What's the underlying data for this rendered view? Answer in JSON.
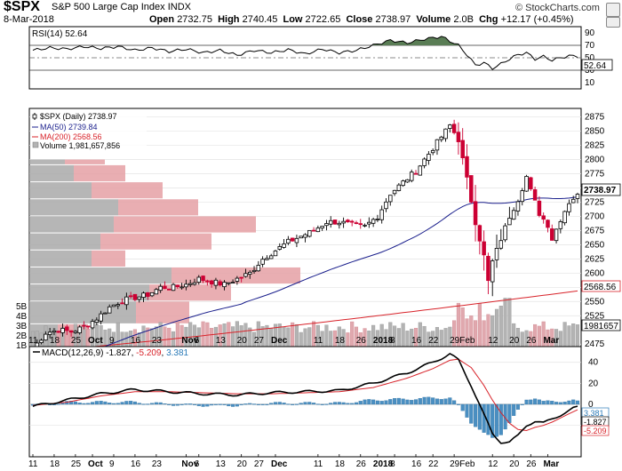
{
  "header": {
    "symbol": "$SPX",
    "name": "S&P 500 Large Cap Index",
    "exchange": "INDX",
    "date": "8-Mar-2018",
    "open_label": "Open",
    "open": "2732.75",
    "high_label": "High",
    "high": "2740.45",
    "low_label": "Low",
    "low": "2722.65",
    "close_label": "Close",
    "close": "2738.97",
    "volume_label": "Volume",
    "volume": "2.0B",
    "chg_label": "Chg",
    "chg": "+12.17 (+0.45%)",
    "brand": "© StockCharts.com"
  },
  "colors": {
    "up": "#000000",
    "down": "#cc0033",
    "ma50": "#1a1f8c",
    "ma200": "#d8232a",
    "rsi_fill": "#5a7d55",
    "macd_hist": "#4a8fc2",
    "vol_up": "#b3b3b3",
    "vol_down": "#e0a8ae",
    "vbp_gray": "#a9a9a9",
    "vbp_red": "#e5a0a5"
  },
  "x_labels": [
    {
      "label": "11",
      "i": 0
    },
    {
      "label": "18",
      "i": 5
    },
    {
      "label": "25",
      "i": 10
    },
    {
      "label": "Oct",
      "i": 14
    },
    {
      "label": "9",
      "i": 19
    },
    {
      "label": "16",
      "i": 24
    },
    {
      "label": "23",
      "i": 29
    },
    {
      "label": "Nov",
      "i": 36
    },
    {
      "label": "6",
      "i": 39
    },
    {
      "label": "13",
      "i": 44
    },
    {
      "label": "20",
      "i": 49
    },
    {
      "label": "27",
      "i": 53
    },
    {
      "label": "Dec",
      "i": 57
    },
    {
      "label": "11",
      "i": 67
    },
    {
      "label": "18",
      "i": 72
    },
    {
      "label": "26",
      "i": 77
    },
    {
      "label": "2018",
      "i": 81
    },
    {
      "label": "8",
      "i": 85
    },
    {
      "label": "16",
      "i": 90
    },
    {
      "label": "22",
      "i": 94
    },
    {
      "label": "29Feb",
      "i": 99
    },
    {
      "label": "12",
      "i": 108
    },
    {
      "label": "20",
      "i": 113
    },
    {
      "label": "26",
      "i": 117
    },
    {
      "label": "Mar",
      "i": 121
    }
  ],
  "rsi": {
    "label": "RSI(14)",
    "value": "52.64",
    "ticks": [
      "90",
      "70",
      "50",
      "30",
      "10"
    ],
    "levels": [
      70,
      30
    ],
    "points": [
      [
        0,
        62
      ],
      [
        4,
        66
      ],
      [
        8,
        64
      ],
      [
        12,
        68
      ],
      [
        16,
        65
      ],
      [
        20,
        68
      ],
      [
        24,
        62
      ],
      [
        28,
        66
      ],
      [
        32,
        60
      ],
      [
        36,
        64
      ],
      [
        40,
        58
      ],
      [
        44,
        62
      ],
      [
        48,
        54
      ],
      [
        52,
        62
      ],
      [
        56,
        58
      ],
      [
        60,
        63
      ],
      [
        64,
        56
      ],
      [
        68,
        64
      ],
      [
        72,
        58
      ],
      [
        76,
        62
      ],
      [
        80,
        70
      ],
      [
        84,
        78
      ],
      [
        88,
        74
      ],
      [
        92,
        80
      ],
      [
        96,
        84
      ],
      [
        100,
        70
      ],
      [
        102,
        55
      ],
      [
        104,
        38
      ],
      [
        106,
        42
      ],
      [
        108,
        33
      ],
      [
        110,
        40
      ],
      [
        112,
        48
      ],
      [
        114,
        55
      ],
      [
        116,
        58
      ],
      [
        118,
        48
      ],
      [
        120,
        52
      ],
      [
        122,
        46
      ],
      [
        124,
        50
      ],
      [
        126,
        53
      ],
      [
        128,
        52.64
      ]
    ]
  },
  "price": {
    "label": "$SPX (Daily) 2738.97",
    "ma50_label": "MA(50) 2739.84",
    "ma200_label": "MA(200) 2568.56",
    "volume_label": "Volume 1,981,657,856",
    "ticks": [
      "2875",
      "2850",
      "2825",
      "2800",
      "2775",
      "2750",
      "2725",
      "2700",
      "2675",
      "2650",
      "2625",
      "2600",
      "2575",
      "2550",
      "2525",
      "2475"
    ],
    "last_price_tag": "2738.97",
    "ma200_tag": "2568.56",
    "volume_tag": "1981657",
    "volume_ticks": [
      "5B",
      "4B",
      "3B",
      "2B",
      "1B"
    ],
    "ylim": [
      2455,
      2890
    ],
    "close_anchors": [
      [
        0,
        2467
      ],
      [
        3,
        2495
      ],
      [
        6,
        2500
      ],
      [
        9,
        2497
      ],
      [
        12,
        2505
      ],
      [
        15,
        2520
      ],
      [
        18,
        2540
      ],
      [
        21,
        2552
      ],
      [
        24,
        2557
      ],
      [
        27,
        2562
      ],
      [
        30,
        2575
      ],
      [
        33,
        2575
      ],
      [
        36,
        2580
      ],
      [
        39,
        2590
      ],
      [
        42,
        2585
      ],
      [
        45,
        2580
      ],
      [
        48,
        2590
      ],
      [
        51,
        2600
      ],
      [
        54,
        2625
      ],
      [
        57,
        2640
      ],
      [
        60,
        2655
      ],
      [
        63,
        2665
      ],
      [
        66,
        2675
      ],
      [
        69,
        2690
      ],
      [
        72,
        2690
      ],
      [
        75,
        2685
      ],
      [
        78,
        2682
      ],
      [
        81,
        2700
      ],
      [
        84,
        2740
      ],
      [
        87,
        2760
      ],
      [
        90,
        2780
      ],
      [
        93,
        2810
      ],
      [
        96,
        2840
      ],
      [
        98,
        2860
      ],
      [
        100,
        2835
      ],
      [
        102,
        2765
      ],
      [
        104,
        2690
      ],
      [
        106,
        2630
      ],
      [
        107,
        2585
      ],
      [
        108,
        2620
      ],
      [
        110,
        2660
      ],
      [
        112,
        2700
      ],
      [
        114,
        2730
      ],
      [
        116,
        2770
      ],
      [
        117,
        2745
      ],
      [
        119,
        2705
      ],
      [
        121,
        2685
      ],
      [
        122,
        2660
      ],
      [
        124,
        2695
      ],
      [
        126,
        2725
      ],
      [
        128,
        2738.97
      ]
    ]
  },
  "vbp": [
    {
      "lo": 2455,
      "hi": 2510,
      "gray": 32,
      "red": 34
    },
    {
      "lo": 2510,
      "hi": 2550,
      "gray": 120,
      "red": 60
    },
    {
      "lo": 2550,
      "hi": 2580,
      "gray": 135,
      "red": 92
    },
    {
      "lo": 2580,
      "hi": 2610,
      "gray": 160,
      "red": 145
    },
    {
      "lo": 2610,
      "hi": 2640,
      "gray": 70,
      "red": 38
    },
    {
      "lo": 2640,
      "hi": 2670,
      "gray": 80,
      "red": 125
    },
    {
      "lo": 2670,
      "hi": 2700,
      "gray": 95,
      "red": 160
    },
    {
      "lo": 2700,
      "hi": 2730,
      "gray": 100,
      "red": 90
    },
    {
      "lo": 2730,
      "hi": 2760,
      "gray": 70,
      "red": 80
    },
    {
      "lo": 2760,
      "hi": 2790,
      "gray": 50,
      "red": 58
    },
    {
      "lo": 2790,
      "hi": 2800,
      "gray": 40,
      "red": 45
    }
  ],
  "macd": {
    "label": "MACD(12,26,9)",
    "macd": "-1.827",
    "signal": "-5.209",
    "hist": "3.381",
    "ticks": [
      "40",
      "20",
      "0",
      "-20"
    ],
    "tags": [
      "3.381",
      "-1.827",
      "-5.209"
    ],
    "ylim": [
      -50,
      55
    ],
    "macd_points": [
      [
        0,
        -2
      ],
      [
        8,
        4
      ],
      [
        16,
        10
      ],
      [
        24,
        14
      ],
      [
        32,
        12
      ],
      [
        40,
        10
      ],
      [
        48,
        9
      ],
      [
        56,
        11
      ],
      [
        64,
        12
      ],
      [
        72,
        13
      ],
      [
        80,
        20
      ],
      [
        88,
        30
      ],
      [
        94,
        40
      ],
      [
        98,
        48
      ],
      [
        100,
        42
      ],
      [
        103,
        18
      ],
      [
        106,
        -10
      ],
      [
        108,
        -28
      ],
      [
        110,
        -36
      ],
      [
        112,
        -36
      ],
      [
        114,
        -30
      ],
      [
        116,
        -20
      ],
      [
        118,
        -16
      ],
      [
        120,
        -18
      ],
      [
        122,
        -14
      ],
      [
        124,
        -10
      ],
      [
        126,
        -6
      ],
      [
        128,
        -1.827
      ]
    ],
    "signal_points": [
      [
        0,
        -1
      ],
      [
        8,
        2
      ],
      [
        16,
        8
      ],
      [
        24,
        12
      ],
      [
        32,
        12
      ],
      [
        40,
        11
      ],
      [
        48,
        10
      ],
      [
        56,
        10
      ],
      [
        64,
        11
      ],
      [
        72,
        12
      ],
      [
        80,
        16
      ],
      [
        88,
        25
      ],
      [
        94,
        34
      ],
      [
        98,
        42
      ],
      [
        100,
        43
      ],
      [
        103,
        35
      ],
      [
        106,
        18
      ],
      [
        108,
        4
      ],
      [
        110,
        -8
      ],
      [
        112,
        -18
      ],
      [
        114,
        -24
      ],
      [
        116,
        -25
      ],
      [
        118,
        -22
      ],
      [
        120,
        -20
      ],
      [
        122,
        -17
      ],
      [
        124,
        -13
      ],
      [
        126,
        -9
      ],
      [
        128,
        -5.209
      ]
    ]
  }
}
